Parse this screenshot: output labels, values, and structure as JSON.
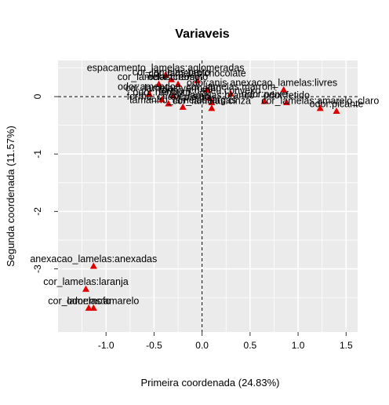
{
  "chart_data": {
    "type": "scatter",
    "title": "Variaveis",
    "xlabel": "Primeira coordenada (24.83%)",
    "ylabel": "Segunda coordenada (11.57%)",
    "xlim": [
      -1.5,
      1.62
    ],
    "ylim": [
      -4.1,
      0.63
    ],
    "xticks": [
      -1.0,
      -0.5,
      0.0,
      0.5,
      1.0,
      1.5
    ],
    "xtick_labels": [
      "-1.0",
      "-0.5",
      "0.0",
      "0.5",
      "1.0",
      "1.5"
    ],
    "yticks": [
      0,
      -1,
      -2,
      -3
    ],
    "ytick_labels": [
      "0",
      "-1",
      "-2",
      "-3"
    ],
    "grid": true,
    "reference_lines": {
      "x": 0,
      "y": 0,
      "style": "dashed"
    },
    "marker_color": "#e00000",
    "background_color": "#ebebeb",
    "grid_color": "#ffffff",
    "points": [
      {
        "x": -1.13,
        "y": -2.95,
        "label": "anexacao_lamelas:anexadas"
      },
      {
        "x": -1.21,
        "y": -3.35,
        "label": "cor_lamelas:laranja"
      },
      {
        "x": -1.13,
        "y": -3.68,
        "label": "cor_lamelas:amarelo"
      },
      {
        "x": -1.18,
        "y": -3.68,
        "label": "odor:mofo"
      },
      {
        "x": -0.38,
        "y": 0.38,
        "label": "espacamento_lamelas:aglomeradas"
      },
      {
        "x": -0.32,
        "y": 0.3,
        "label": "cor_lamelas:preto"
      },
      {
        "x": -0.05,
        "y": 0.28,
        "label": "cor_lamelas:chocolate"
      },
      {
        "x": -0.45,
        "y": 0.22,
        "label": "cor_lamelas:creme"
      },
      {
        "x": -0.25,
        "y": 0.22,
        "label": "odor:creosoto"
      },
      {
        "x": 0.05,
        "y": 0.12,
        "label": "odor:anis"
      },
      {
        "x": 0.85,
        "y": 0.12,
        "label": "anexacao_lamelas:livres"
      },
      {
        "x": -0.55,
        "y": 0.05,
        "label": "odor:amendoa"
      },
      {
        "x": -0.3,
        "y": 0.02,
        "label": "cor_lamelas:vermelho"
      },
      {
        "x": 0.3,
        "y": 0.05,
        "label": "cor_lamelas:marrom"
      },
      {
        "x": 0.08,
        "y": -0.02,
        "label": "forma_chapeu:convexo"
      },
      {
        "x": -0.42,
        "y": -0.05,
        "label": "odor:nenhum"
      },
      {
        "x": 0.65,
        "y": -0.08,
        "label": "odor:peixe"
      },
      {
        "x": 0.1,
        "y": -0.1,
        "label": "cor_lamelas:branco"
      },
      {
        "x": -0.35,
        "y": -0.12,
        "label": "forma_chapeu:sino"
      },
      {
        "x": 0.88,
        "y": -0.1,
        "label": "odor:fetido"
      },
      {
        "x": -0.2,
        "y": -0.18,
        "label": "tamanho_lamelas:largas"
      },
      {
        "x": 0.1,
        "y": -0.2,
        "label": "cor_lamelas:cinza"
      },
      {
        "x": 1.4,
        "y": -0.25,
        "label": "odor:picante"
      },
      {
        "x": 1.23,
        "y": -0.2,
        "label": "cor_lamelas:amarelo_claro"
      }
    ]
  }
}
